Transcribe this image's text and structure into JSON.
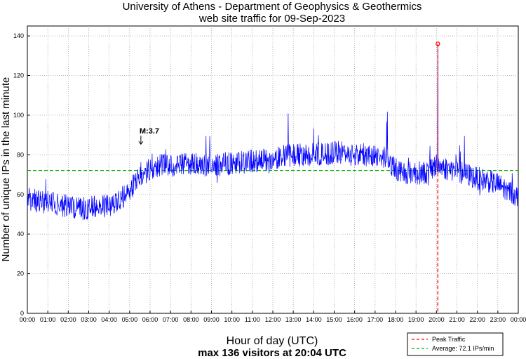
{
  "chart_data": {
    "type": "line",
    "title": "University of Athens - Department of Geophysics & Geothermics",
    "subtitle": "web site traffic for 09-Sep-2023",
    "xlabel": "Hour of day (UTC)",
    "ylabel": "Number of unique IPs in the last minute",
    "footer": "max 136 visitors at 20:04 UTC",
    "xlim": [
      0,
      24
    ],
    "ylim": [
      0,
      145
    ],
    "yticks": [
      0,
      20,
      40,
      60,
      80,
      100,
      120,
      140
    ],
    "xtick_labels": [
      "00:00",
      "01:00",
      "02:00",
      "03:00",
      "04:00",
      "05:00",
      "06:00",
      "07:00",
      "08:00",
      "09:00",
      "10:00",
      "11:00",
      "12:00",
      "13:00",
      "14:00",
      "15:00",
      "16:00",
      "17:00",
      "18:00",
      "19:00",
      "20:00",
      "21:00",
      "22:00",
      "23:00",
      "00:00"
    ],
    "grid": true,
    "series": [
      {
        "name": "traffic",
        "color": "#0000ff",
        "hours": [
          0,
          0.5,
          1,
          1.5,
          2,
          2.5,
          3,
          3.5,
          4,
          4.5,
          5,
          5.5,
          6,
          6.5,
          7,
          7.5,
          8,
          8.5,
          9,
          9.5,
          10,
          10.5,
          11,
          11.5,
          12,
          12.5,
          13,
          13.5,
          14,
          14.5,
          15,
          15.5,
          16,
          16.5,
          17,
          17.5,
          18,
          18.5,
          19,
          19.5,
          20,
          20.5,
          21,
          21.5,
          22,
          22.5,
          23,
          23.5,
          24
        ],
        "values": [
          58,
          57,
          56,
          55,
          54,
          53,
          53,
          54,
          54,
          57,
          62,
          68,
          73,
          75,
          74,
          75,
          75,
          75,
          75,
          75,
          76,
          76,
          77,
          77,
          78,
          79,
          80,
          80,
          80,
          80,
          81,
          81,
          80,
          80,
          80,
          79,
          73,
          71,
          71,
          71,
          75,
          73,
          72,
          70,
          68,
          67,
          65,
          62,
          59
        ]
      }
    ],
    "average": {
      "value": 72.1,
      "color": "#00aa00"
    },
    "peak": {
      "hour": 20.067,
      "value": 136,
      "color": "#ff0000"
    },
    "annotation": {
      "text": "M:3.7",
      "hour": 5.55,
      "value": 85
    },
    "legend": {
      "position": "bottom-right",
      "entries": [
        "Peak Traffic",
        "Average: 72.1 IPs/min"
      ]
    }
  }
}
